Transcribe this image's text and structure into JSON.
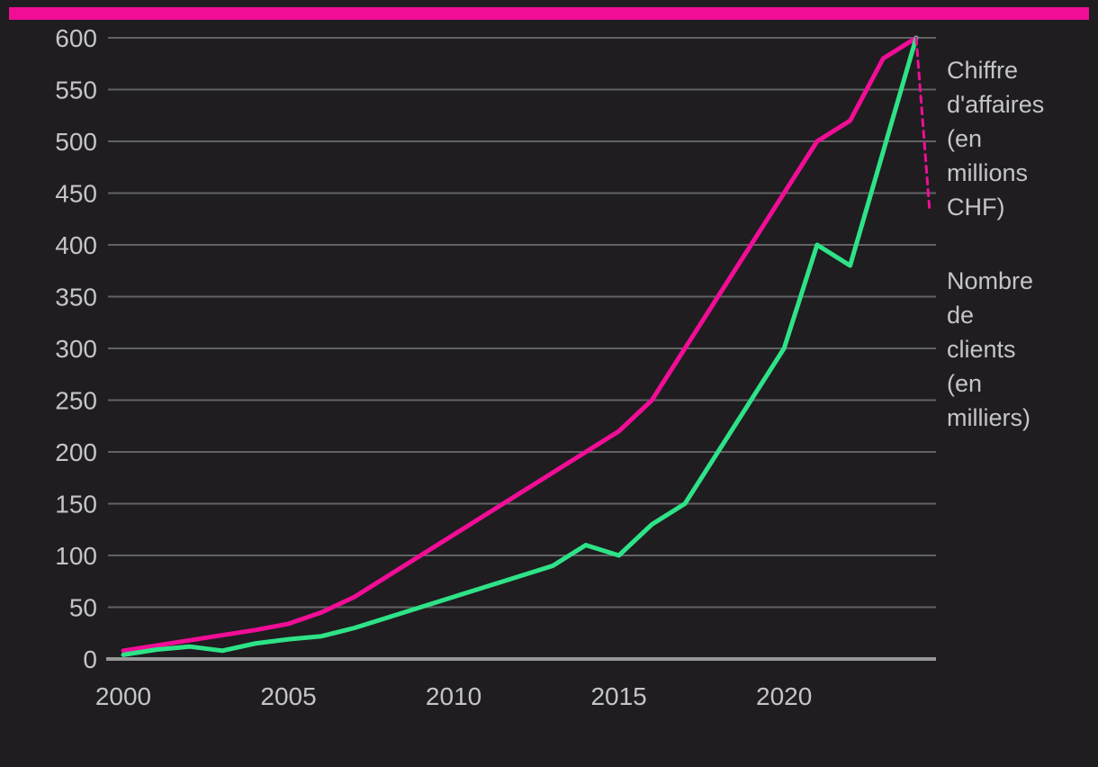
{
  "page": {
    "background_color": "#1f1d20",
    "accent_bar_color": "#f10d96",
    "text_color": "#c5c4c7",
    "grid_color": "#626265",
    "axis_color": "#97979a"
  },
  "chart_data": {
    "type": "line",
    "x": [
      2000,
      2001,
      2002,
      2003,
      2004,
      2005,
      2006,
      2007,
      2008,
      2009,
      2010,
      2011,
      2012,
      2013,
      2014,
      2015,
      2016,
      2017,
      2018,
      2019,
      2020,
      2021,
      2022,
      2023,
      2024
    ],
    "series": [
      {
        "name": "Chiffre d'affaires (en millions CHF)",
        "legend_text": "Chiffre\nd'affaires\n(en\nmillions\nCHF)",
        "color": "#f10d96",
        "style": "solid",
        "values": [
          8,
          13,
          18,
          23,
          28,
          34,
          45,
          60,
          80,
          100,
          120,
          140,
          160,
          180,
          200,
          220,
          250,
          300,
          350,
          400,
          450,
          500,
          520,
          580,
          600
        ]
      },
      {
        "name": "Nombre de clients (en milliers)",
        "legend_text": "Nombre\nde\nclients\n(en\nmilliers)",
        "color": "#2ee387",
        "style": "solid",
        "values": [
          4,
          9,
          12,
          8,
          15,
          19,
          22,
          30,
          40,
          50,
          60,
          70,
          80,
          90,
          110,
          100,
          130,
          150,
          200,
          250,
          300,
          400,
          380,
          490,
          600
        ]
      }
    ],
    "ylim": [
      0,
      600
    ],
    "yticks": [
      0,
      50,
      100,
      150,
      200,
      250,
      300,
      350,
      400,
      450,
      500,
      550,
      600
    ],
    "xticks": [
      2000,
      2005,
      2010,
      2015,
      2020
    ],
    "grid": true,
    "legend_position": "right",
    "annotation": {
      "leader_line_from_last_point": true,
      "leader_color": "#f10d96",
      "leader_style": "dashed"
    }
  }
}
